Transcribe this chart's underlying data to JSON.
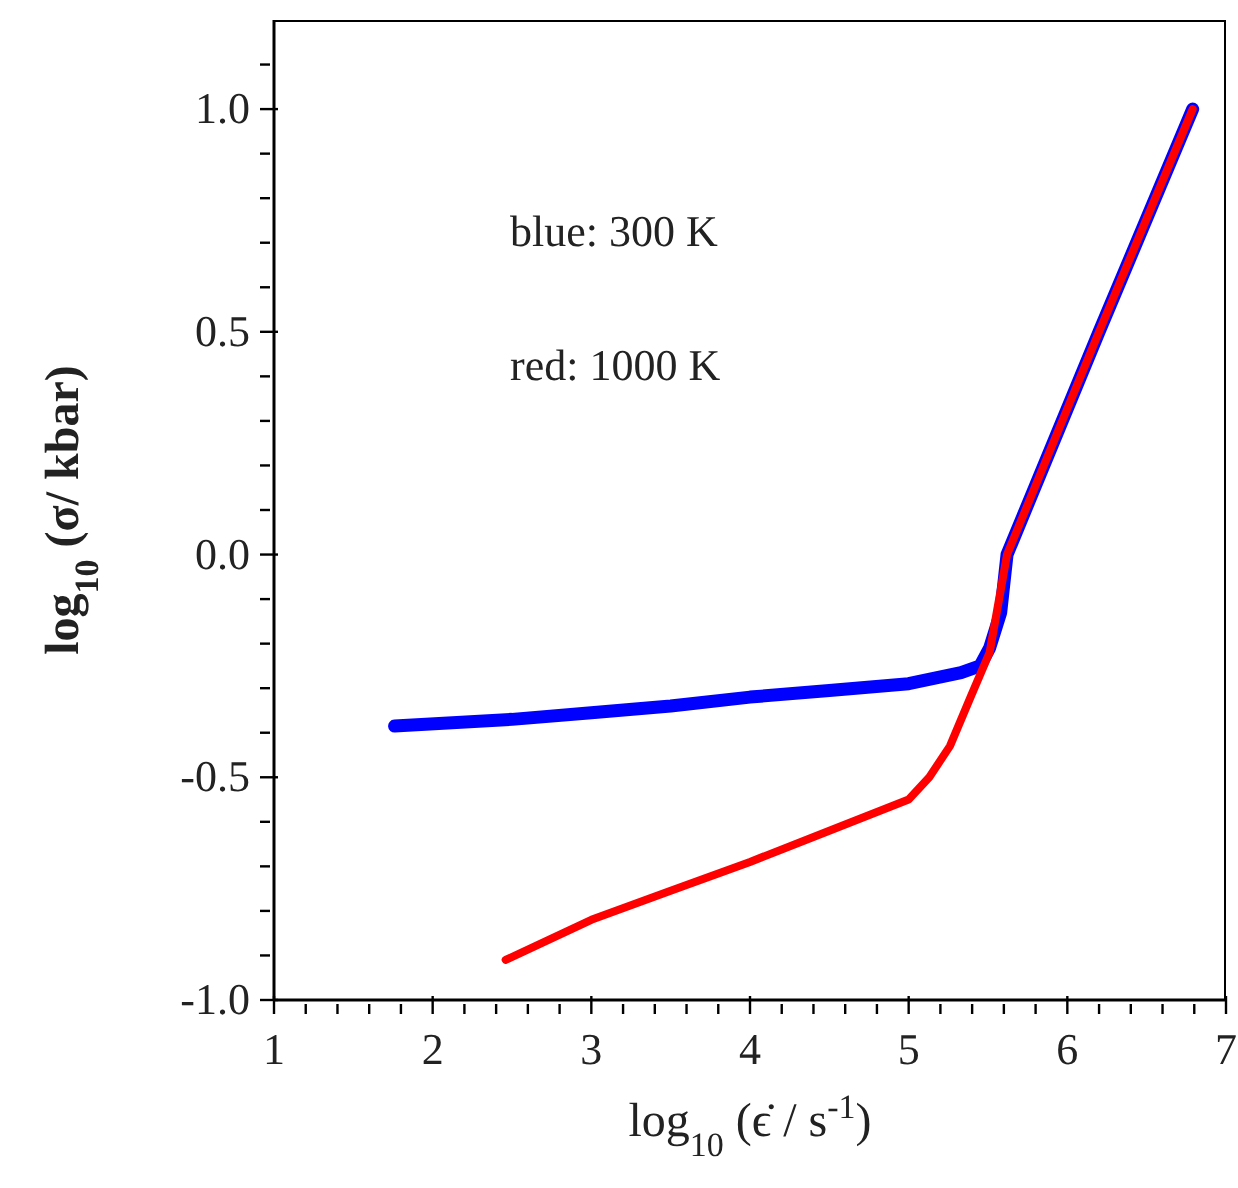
{
  "chart_data": {
    "type": "line",
    "xlabel": "log$_{10}$ (ϵ̇ / s$^{-1}$)",
    "ylabel": "log$_{10}$ (σ/ kbar)",
    "annotations": [
      "blue: 300 K",
      "red: 1000 K"
    ],
    "xlim": [
      1,
      7
    ],
    "ylim": [
      -1.0,
      1.2
    ],
    "xticks": [
      1,
      {
        "value": 1.2,
        "label": null
      },
      {
        "value": 1.4,
        "label": null
      },
      {
        "value": 1.6,
        "label": null
      },
      {
        "value": 1.8,
        "label": null
      },
      2,
      {
        "value": 2.2,
        "label": null
      },
      {
        "value": 2.4,
        "label": null
      },
      {
        "value": 2.6,
        "label": null
      },
      {
        "value": 2.8,
        "label": null
      },
      3,
      {
        "value": 3.2,
        "label": null
      },
      {
        "value": 3.4,
        "label": null
      },
      {
        "value": 3.6,
        "label": null
      },
      {
        "value": 3.8,
        "label": null
      },
      4,
      {
        "value": 4.2,
        "label": null
      },
      {
        "value": 4.4,
        "label": null
      },
      {
        "value": 4.6,
        "label": null
      },
      {
        "value": 4.8,
        "label": null
      },
      5,
      {
        "value": 5.2,
        "label": null
      },
      {
        "value": 5.4,
        "label": null
      },
      {
        "value": 5.6,
        "label": null
      },
      {
        "value": 5.8,
        "label": null
      },
      6,
      {
        "value": 6.2,
        "label": null
      },
      {
        "value": 6.4,
        "label": null
      },
      {
        "value": 6.6,
        "label": null
      },
      {
        "value": 6.8,
        "label": null
      },
      7
    ],
    "yticks": [
      {
        "value": -1.0,
        "label": "-1.0"
      },
      {
        "value": -0.9,
        "label": null
      },
      {
        "value": -0.8,
        "label": null
      },
      {
        "value": -0.7,
        "label": null
      },
      {
        "value": -0.6,
        "label": null
      },
      {
        "value": -0.5,
        "label": "-0.5"
      },
      {
        "value": -0.4,
        "label": null
      },
      {
        "value": -0.3,
        "label": null
      },
      {
        "value": -0.2,
        "label": null
      },
      {
        "value": -0.1,
        "label": null
      },
      {
        "value": 0,
        "label": "0.0"
      },
      {
        "value": 0.1,
        "label": null
      },
      {
        "value": 0.2,
        "label": null
      },
      {
        "value": 0.3,
        "label": null
      },
      {
        "value": 0.4,
        "label": null
      },
      {
        "value": 0.5,
        "label": "0.5"
      },
      {
        "value": 0.6,
        "label": null
      },
      {
        "value": 0.7,
        "label": null
      },
      {
        "value": 0.8,
        "label": null
      },
      {
        "value": 0.9,
        "label": null
      },
      {
        "value": 1.0,
        "label": "1.0"
      },
      {
        "value": 1.1,
        "label": null
      }
    ],
    "marker": "none",
    "line_style": "solid",
    "series": [
      {
        "color": "#0000ff",
        "x": [
          1.76,
          2.5,
          3,
          3.5,
          4,
          4.5,
          5,
          5.33,
          5.45,
          5.51,
          5.58,
          5.62,
          6.2,
          6.79
        ],
        "values": [
          -0.385,
          -0.37,
          -0.355,
          -0.34,
          -0.32,
          -0.305,
          -0.29,
          -0.265,
          -0.25,
          -0.21,
          -0.13,
          0,
          0.5,
          1.0
        ]
      },
      {
        "color": "#ff0000",
        "x": [
          2.46,
          3,
          3.5,
          4,
          4.5,
          5,
          5.13,
          5.26,
          5.39,
          5.51,
          5.62,
          6.2,
          6.79
        ],
        "values": [
          -0.91,
          -0.82,
          -0.755,
          -0.69,
          -0.62,
          -0.55,
          -0.5,
          -0.43,
          -0.32,
          -0.22,
          0,
          0.5,
          1.0
        ]
      }
    ]
  }
}
